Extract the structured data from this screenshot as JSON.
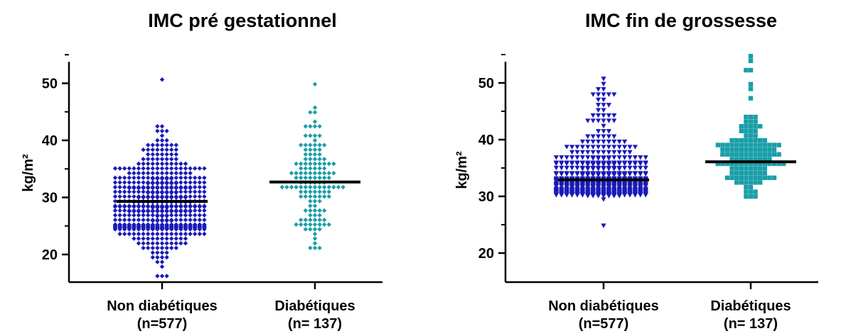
{
  "colors": {
    "non_diabetic": "#1a1ab8",
    "diabetic": "#1a9ea8",
    "mean_line": "#000000",
    "axis": "#000000"
  },
  "chart_data": [
    {
      "type": "scatter",
      "title": "IMC pré gestationnel",
      "ylabel": "kg/m²",
      "ylim": [
        15,
        55
      ],
      "yticks": [
        "20",
        "30",
        "40",
        "50"
      ],
      "marker": "diamond",
      "categories": [
        "Non diabétiques (n=577)",
        "Diabétiques (n= 137)"
      ],
      "category_lines": [
        [
          "Non diabétiques",
          "(n=577)"
        ],
        [
          "Diabétiques",
          "(n= 137)"
        ]
      ],
      "groups": [
        {
          "name": "Non diabétiques",
          "n": 577,
          "mean": 29.3,
          "min": 16.5,
          "max": 51,
          "color_key": "non_diabetic"
        },
        {
          "name": "Diabétiques",
          "n": 137,
          "mean": 32.7,
          "min": 21.5,
          "max": 50,
          "color_key": "diabetic"
        }
      ]
    },
    {
      "type": "scatter",
      "title": "IMC fin de grossesse",
      "ylabel": "kg/m²",
      "ylim": [
        15,
        55
      ],
      "yticks": [
        "20",
        "30",
        "40",
        "50"
      ],
      "marker": "triangle-down/square",
      "categories": [
        "Non diabétiques (n=577)",
        "Diabétiques (n= 137)"
      ],
      "category_lines": [
        [
          "Non diabétiques",
          "(n=577)"
        ],
        [
          "Diabétiques",
          "(n= 137)"
        ]
      ],
      "groups": [
        {
          "name": "Non diabétiques",
          "n": 577,
          "mean": 32.9,
          "min": 25,
          "max": 51,
          "color_key": "non_diabetic"
        },
        {
          "name": "Diabétiques",
          "n": 137,
          "mean": 36.1,
          "min": 29.8,
          "max": 54.8,
          "color_key": "diabetic"
        }
      ]
    }
  ]
}
